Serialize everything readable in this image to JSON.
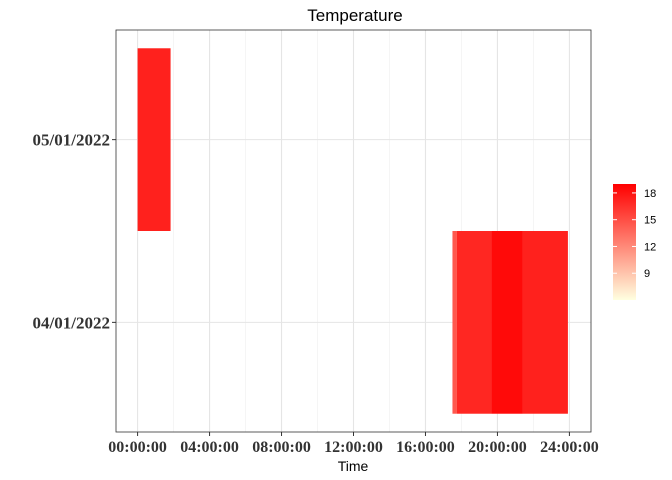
{
  "chart_data": {
    "type": "heatmap",
    "title": "Temperature",
    "xlabel": "Time",
    "ylabel": "",
    "x_ticks": [
      "00:00:00",
      "04:00:00",
      "08:00:00",
      "12:00:00",
      "16:00:00",
      "20:00:00",
      "24:00:00"
    ],
    "x_tick_values_hours": [
      0,
      4,
      8,
      12,
      16,
      20,
      24
    ],
    "xlim_hours": [
      -1.2,
      25.2
    ],
    "y_categories": [
      "04/01/2022",
      "05/01/2022"
    ],
    "tiles": [
      {
        "date": "05/01/2022",
        "start": "00:00:00",
        "end": "01:50:00",
        "value": 17.3
      },
      {
        "date": "04/01/2022",
        "start": "17:30:00",
        "end": "17:45:00",
        "value": 14.5
      },
      {
        "date": "04/01/2022",
        "start": "17:45:00",
        "end": "19:40:00",
        "value": 17.0
      },
      {
        "date": "04/01/2022",
        "start": "19:40:00",
        "end": "21:25:00",
        "value": 18.5
      },
      {
        "date": "04/01/2022",
        "start": "21:25:00",
        "end": "23:55:00",
        "value": 17.3
      }
    ],
    "legend": {
      "ticks": [
        "18",
        "15",
        "12",
        "9"
      ],
      "tick_values": [
        18,
        15,
        12,
        9
      ],
      "range": [
        6,
        19
      ],
      "low_color": "#FFFFE0",
      "high_color": "#FF0000"
    },
    "grid": true,
    "legend_position": "right"
  }
}
